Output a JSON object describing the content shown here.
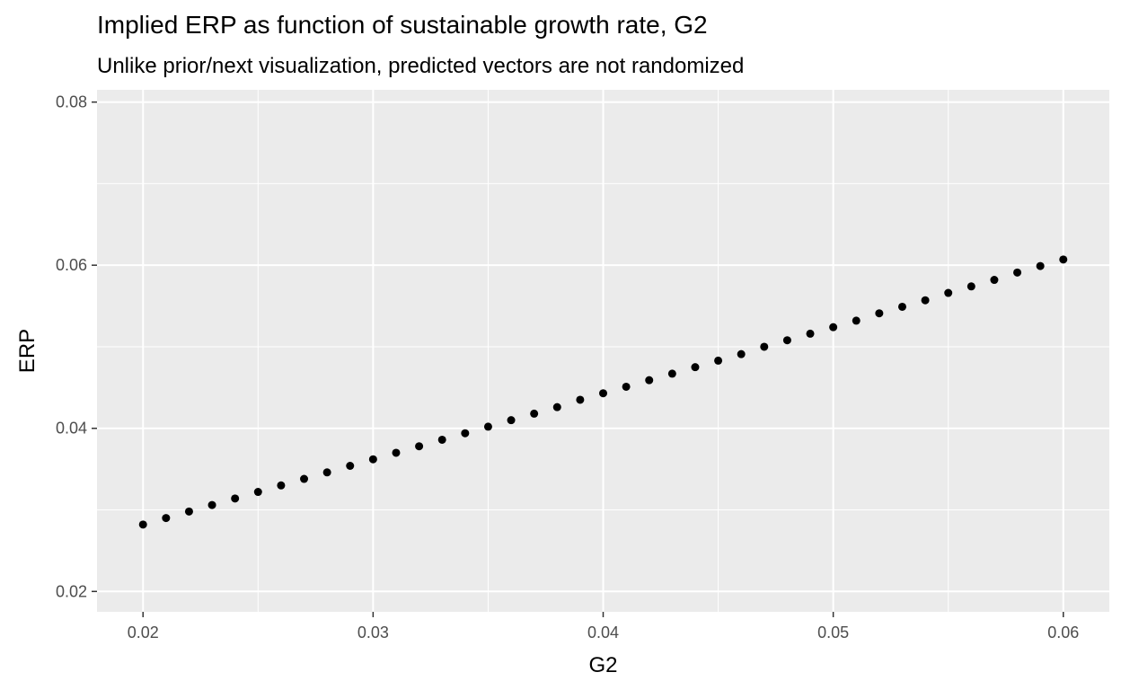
{
  "chart_data": {
    "type": "scatter",
    "title": "Implied ERP as function of sustainable growth rate, G2",
    "subtitle": "Unlike prior/next visualization, predicted vectors are not randomized",
    "xlabel": "G2",
    "ylabel": "ERP",
    "xlim": [
      0.018,
      0.062
    ],
    "ylim": [
      0.0175,
      0.0815
    ],
    "x_ticks": [
      "0.02",
      "0.03",
      "0.04",
      "0.05",
      "0.06"
    ],
    "y_ticks": [
      "0.02",
      "0.04",
      "0.06",
      "0.08"
    ],
    "grid": true,
    "legend": "none",
    "colors": {
      "panel": "#ebebeb",
      "grid": "#ffffff",
      "point": "#000000"
    },
    "x": [
      0.02,
      0.021,
      0.022,
      0.023,
      0.024,
      0.025,
      0.026,
      0.027,
      0.028,
      0.029,
      0.03,
      0.031,
      0.032,
      0.033,
      0.034,
      0.035,
      0.036,
      0.037,
      0.038,
      0.039,
      0.04,
      0.041,
      0.042,
      0.043,
      0.044,
      0.045,
      0.046,
      0.047,
      0.048,
      0.049,
      0.05,
      0.051,
      0.052,
      0.053,
      0.054,
      0.055,
      0.056,
      0.057,
      0.058,
      0.059,
      0.06
    ],
    "y": [
      0.0282,
      0.029,
      0.0298,
      0.0306,
      0.0314,
      0.0322,
      0.033,
      0.0338,
      0.0346,
      0.0354,
      0.0362,
      0.037,
      0.0378,
      0.0386,
      0.0394,
      0.0402,
      0.041,
      0.0418,
      0.0426,
      0.0435,
      0.0443,
      0.0451,
      0.0459,
      0.0467,
      0.0475,
      0.0483,
      0.0491,
      0.05,
      0.0508,
      0.0516,
      0.0524,
      0.0532,
      0.0541,
      0.0549,
      0.0557,
      0.0566,
      0.0574,
      0.0582,
      0.0591,
      0.0599,
      0.0607
    ]
  }
}
